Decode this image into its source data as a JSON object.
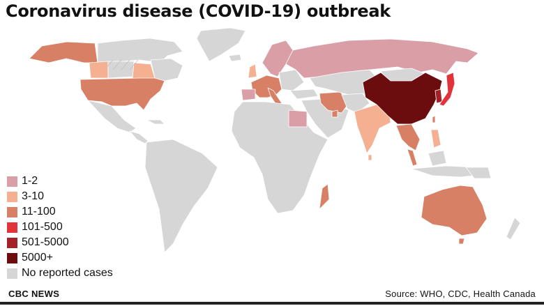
{
  "title": "Coronavirus disease (COVID-19) outbreak",
  "legend": {
    "items": [
      {
        "label": "1-2",
        "color": "#d99ea6"
      },
      {
        "label": "3-10",
        "color": "#f4b090"
      },
      {
        "label": "11-100",
        "color": "#d88066"
      },
      {
        "label": "101-500",
        "color": "#e2333b"
      },
      {
        "label": "501-5000",
        "color": "#a3222a"
      },
      {
        "label": "5000+",
        "color": "#6b0c0f"
      },
      {
        "label": "No reported cases",
        "color": "#d6d6d6"
      }
    ]
  },
  "colors": {
    "no_cases": "#d6d6d6",
    "range_1_2": "#d99ea6",
    "range_3_10": "#f4b090",
    "range_11_100": "#d88066",
    "range_101_500": "#e2333b",
    "range_501_5000": "#a3222a",
    "range_5000_plus": "#6b0c0f",
    "border": "#ffffff"
  },
  "footer": {
    "brand": "CBC NEWS",
    "source": "Source: WHO, CDC, Health Canada"
  }
}
